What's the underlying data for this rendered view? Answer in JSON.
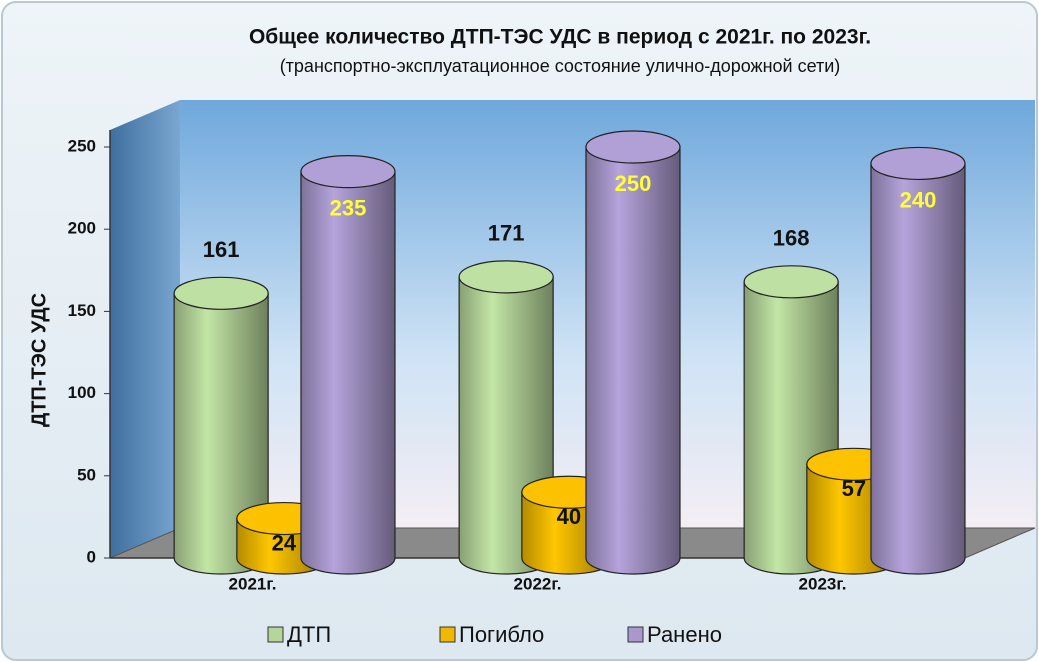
{
  "chart_data": {
    "type": "bar",
    "title": "Общее количество ДТП-ТЭС УДС в период с 2021г. по 2023г.",
    "subtitle": "(транспортно-эксплуатационное состояние улично-дорожной сети)",
    "y_label": "ДТП-ТЭС УДС",
    "categories": [
      "2021г.",
      "2022г.",
      "2023г."
    ],
    "series": [
      {
        "name": "ДТП",
        "color": "#b5d59a",
        "values": [
          161,
          171,
          168
        ]
      },
      {
        "name": "Погибло",
        "color": "#f0b800",
        "values": [
          24,
          40,
          57
        ]
      },
      {
        "name": "Ранено",
        "color": "#a898cc",
        "values": [
          235,
          250,
          240
        ]
      }
    ],
    "ylim": [
      0,
      250
    ],
    "yticks": [
      0,
      50,
      100,
      150,
      200,
      250
    ],
    "grid": false,
    "legend": "bottom"
  }
}
